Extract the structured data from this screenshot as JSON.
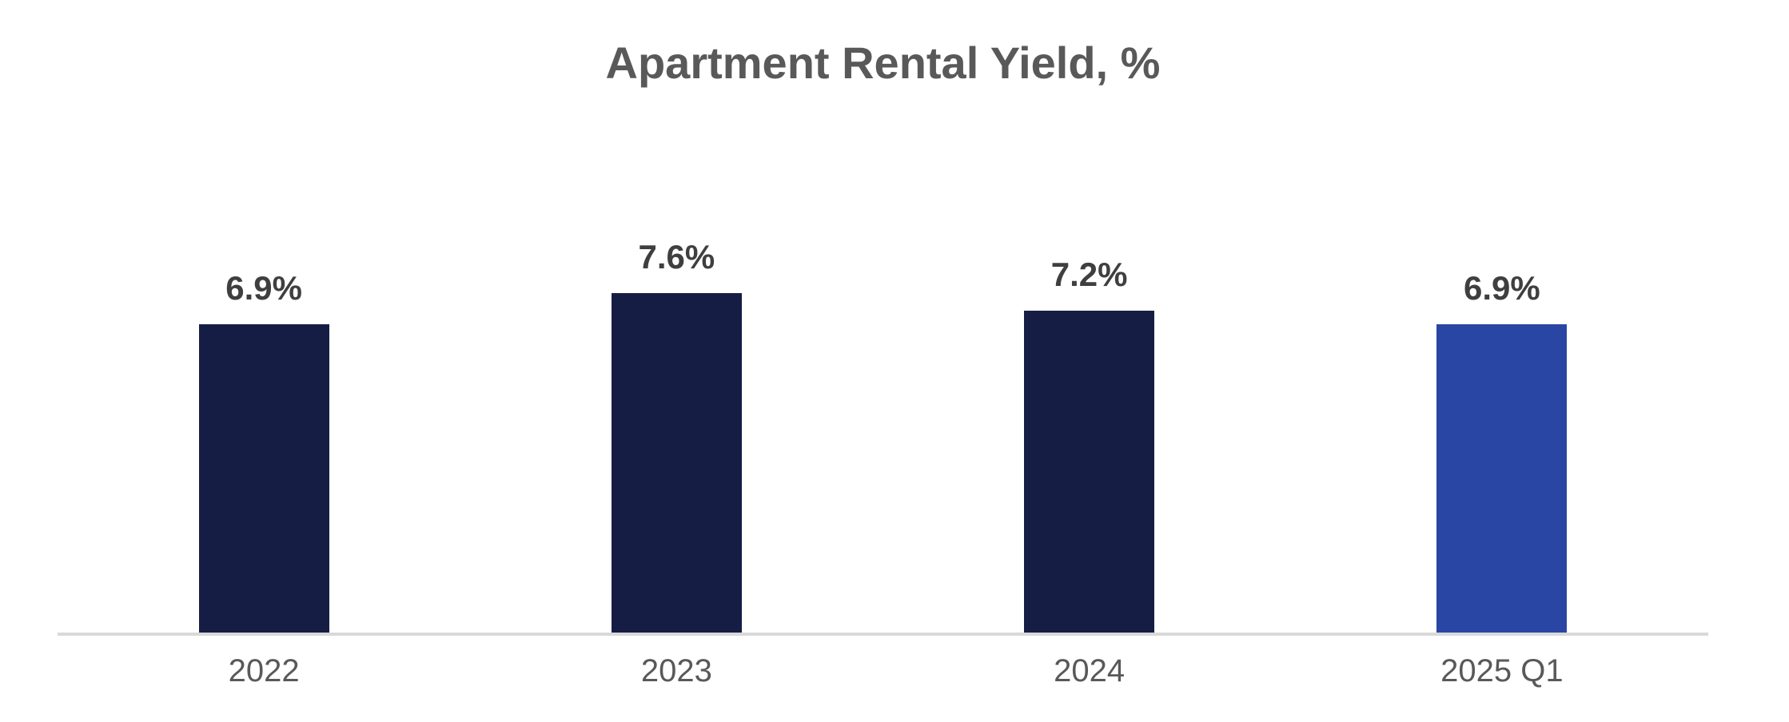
{
  "page": {
    "background_color": "#FFFFFF"
  },
  "chart_data": {
    "type": "bar",
    "title": "Apartment Rental Yield, %",
    "categories": [
      "2022",
      "2023",
      "2024",
      "2025 Q1"
    ],
    "values": [
      6.9,
      7.6,
      7.2,
      6.9
    ],
    "data_labels": [
      "6.9%",
      "7.6%",
      "7.2%",
      "6.9%"
    ],
    "bar_colors": [
      "#161D45",
      "#161D45",
      "#161D45",
      "#2A46A5"
    ],
    "xlabel": "",
    "ylabel": "",
    "grid": false,
    "legend": false,
    "y_axis_visible": false,
    "x_axis_visible": true,
    "title_color": "#595959",
    "data_label_color": "#3F3F3F",
    "tick_label_color": "#595959",
    "axis_line_color": "#D9D9D9",
    "navy_color": "#161D45",
    "accent_blue_color": "#2A46A5"
  }
}
